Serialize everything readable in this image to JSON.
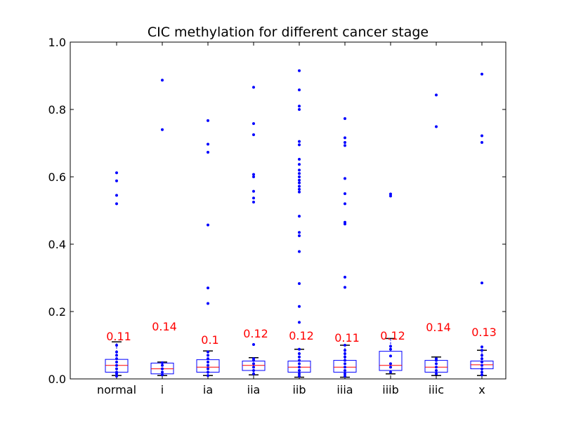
{
  "chart_data": {
    "type": "box",
    "title": "CIC methylation for different cancer stage",
    "xlabel": "",
    "ylabel": "",
    "ylim": [
      0,
      1.0
    ],
    "yticks": [
      "0.0",
      "0.2",
      "0.4",
      "0.6",
      "0.8",
      "1.0"
    ],
    "categories": [
      "normal",
      "i",
      "ia",
      "iia",
      "iib",
      "iiia",
      "iiib",
      "iiic",
      "x"
    ],
    "grid": false,
    "colors": {
      "box": "#0000ff",
      "median": "#ff0000",
      "annotation": "#ff0000",
      "points": "#0000ff"
    },
    "boxes": [
      {
        "label": "normal",
        "q1": 0.02,
        "median": 0.04,
        "q3": 0.058,
        "whisker_low": 0.01,
        "whisker_high": 0.11,
        "annotation": "0.11",
        "points": [
          0.008,
          0.015,
          0.02,
          0.03,
          0.04,
          0.05,
          0.06,
          0.07,
          0.08,
          0.1,
          0.52,
          0.545,
          0.588,
          0.612
        ]
      },
      {
        "label": "i",
        "q1": 0.015,
        "median": 0.03,
        "q3": 0.047,
        "whisker_low": 0.01,
        "whisker_high": 0.05,
        "annotation": "0.14",
        "points": [
          0.012,
          0.02,
          0.03,
          0.04,
          0.048,
          0.74,
          0.887
        ]
      },
      {
        "label": "ia",
        "q1": 0.02,
        "median": 0.035,
        "q3": 0.057,
        "whisker_low": 0.01,
        "whisker_high": 0.083,
        "annotation": "0.1",
        "points": [
          0.01,
          0.02,
          0.03,
          0.04,
          0.05,
          0.06,
          0.07,
          0.08,
          0.224,
          0.27,
          0.457,
          0.673,
          0.697,
          0.767
        ]
      },
      {
        "label": "iia",
        "q1": 0.025,
        "median": 0.04,
        "q3": 0.053,
        "whisker_low": 0.012,
        "whisker_high": 0.063,
        "annotation": "0.12",
        "points": [
          0.015,
          0.025,
          0.035,
          0.045,
          0.055,
          0.06,
          0.102,
          0.525,
          0.537,
          0.557,
          0.6,
          0.607,
          0.725,
          0.758,
          0.866
        ]
      },
      {
        "label": "iib",
        "q1": 0.02,
        "median": 0.035,
        "q3": 0.053,
        "whisker_low": 0.005,
        "whisker_high": 0.088,
        "annotation": "0.12",
        "points": [
          0.008,
          0.015,
          0.025,
          0.035,
          0.045,
          0.055,
          0.065,
          0.075,
          0.088,
          0.168,
          0.215,
          0.283,
          0.378,
          0.425,
          0.435,
          0.483,
          0.555,
          0.563,
          0.572,
          0.582,
          0.59,
          0.6,
          0.61,
          0.62,
          0.637,
          0.652,
          0.695,
          0.705,
          0.8,
          0.81,
          0.858,
          0.915
        ]
      },
      {
        "label": "iiia",
        "q1": 0.02,
        "median": 0.035,
        "q3": 0.055,
        "whisker_low": 0.005,
        "whisker_high": 0.1,
        "annotation": "0.11",
        "points": [
          0.008,
          0.015,
          0.025,
          0.035,
          0.045,
          0.055,
          0.065,
          0.075,
          0.085,
          0.1,
          0.272,
          0.302,
          0.46,
          0.465,
          0.52,
          0.55,
          0.595,
          0.693,
          0.702,
          0.716,
          0.773
        ]
      },
      {
        "label": "iiib",
        "q1": 0.025,
        "median": 0.04,
        "q3": 0.082,
        "whisker_low": 0.015,
        "whisker_high": 0.12,
        "annotation": "0.12",
        "points": [
          0.02,
          0.035,
          0.045,
          0.068,
          0.088,
          0.097,
          0.543,
          0.549
        ]
      },
      {
        "label": "iiic",
        "q1": 0.02,
        "median": 0.035,
        "q3": 0.055,
        "whisker_low": 0.01,
        "whisker_high": 0.065,
        "annotation": "0.14",
        "points": [
          0.015,
          0.025,
          0.035,
          0.045,
          0.055,
          0.06,
          0.749,
          0.843
        ]
      },
      {
        "label": "x",
        "q1": 0.03,
        "median": 0.042,
        "q3": 0.053,
        "whisker_low": 0.01,
        "whisker_high": 0.085,
        "annotation": "0.13",
        "points": [
          0.012,
          0.02,
          0.03,
          0.04,
          0.05,
          0.06,
          0.07,
          0.085,
          0.095,
          0.285,
          0.702,
          0.722,
          0.905
        ]
      }
    ]
  }
}
